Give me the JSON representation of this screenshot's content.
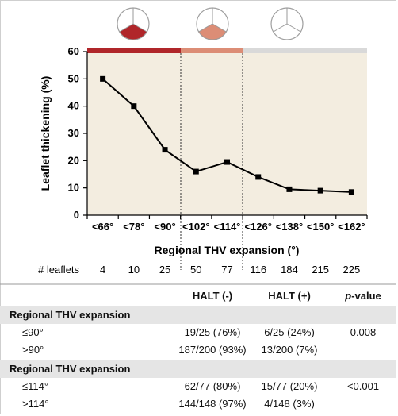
{
  "chart_data": {
    "type": "line",
    "categories": [
      "<66°",
      "<78°",
      "<90°",
      "<102°",
      "<114°",
      "<126°",
      "<138°",
      "<150°",
      "<162°"
    ],
    "values": [
      50,
      40,
      24,
      16,
      19.5,
      14,
      9.5,
      9,
      8.5
    ],
    "xlabel": "Regional THV expansion (°)",
    "ylabel": "Leaflet thickening (%)",
    "ylim": [
      0,
      60
    ],
    "yticks": [
      0,
      10,
      20,
      30,
      40,
      50,
      60
    ],
    "grid": false,
    "leaflets_label": "# leaflets",
    "leaflets": [
      "4",
      "10",
      "25",
      "50",
      "77",
      "116",
      "184",
      "215",
      "225"
    ],
    "colors": {
      "plot_bg": "#f3ede0",
      "band_high": "#b0262a",
      "band_mid": "#dc8d76",
      "band_low": "#d9d9d9",
      "line": "#000000"
    }
  },
  "table": {
    "headers": {
      "col1": "HALT (-)",
      "col2": "HALT (+)",
      "col3_p": "p",
      "col3_rest": "-value"
    },
    "sections": [
      {
        "title": "Regional THV expansion",
        "rows": [
          {
            "label": "≤90°",
            "c1": "19/25 (76%)",
            "c2": "6/25 (24%)",
            "p": "0.008"
          },
          {
            "label": ">90°",
            "c1": "187/200 (93%)",
            "c2": "13/200 (7%)",
            "p": ""
          }
        ]
      },
      {
        "title": "Regional THV expansion",
        "rows": [
          {
            "label": "≤114°",
            "c1": "62/77 (80%)",
            "c2": "15/77 (20%)",
            "p": "<0.001"
          },
          {
            "label": ">114°",
            "c1": "144/148 (97%)",
            "c2": "4/148 (3%)",
            "p": ""
          }
        ]
      }
    ]
  }
}
